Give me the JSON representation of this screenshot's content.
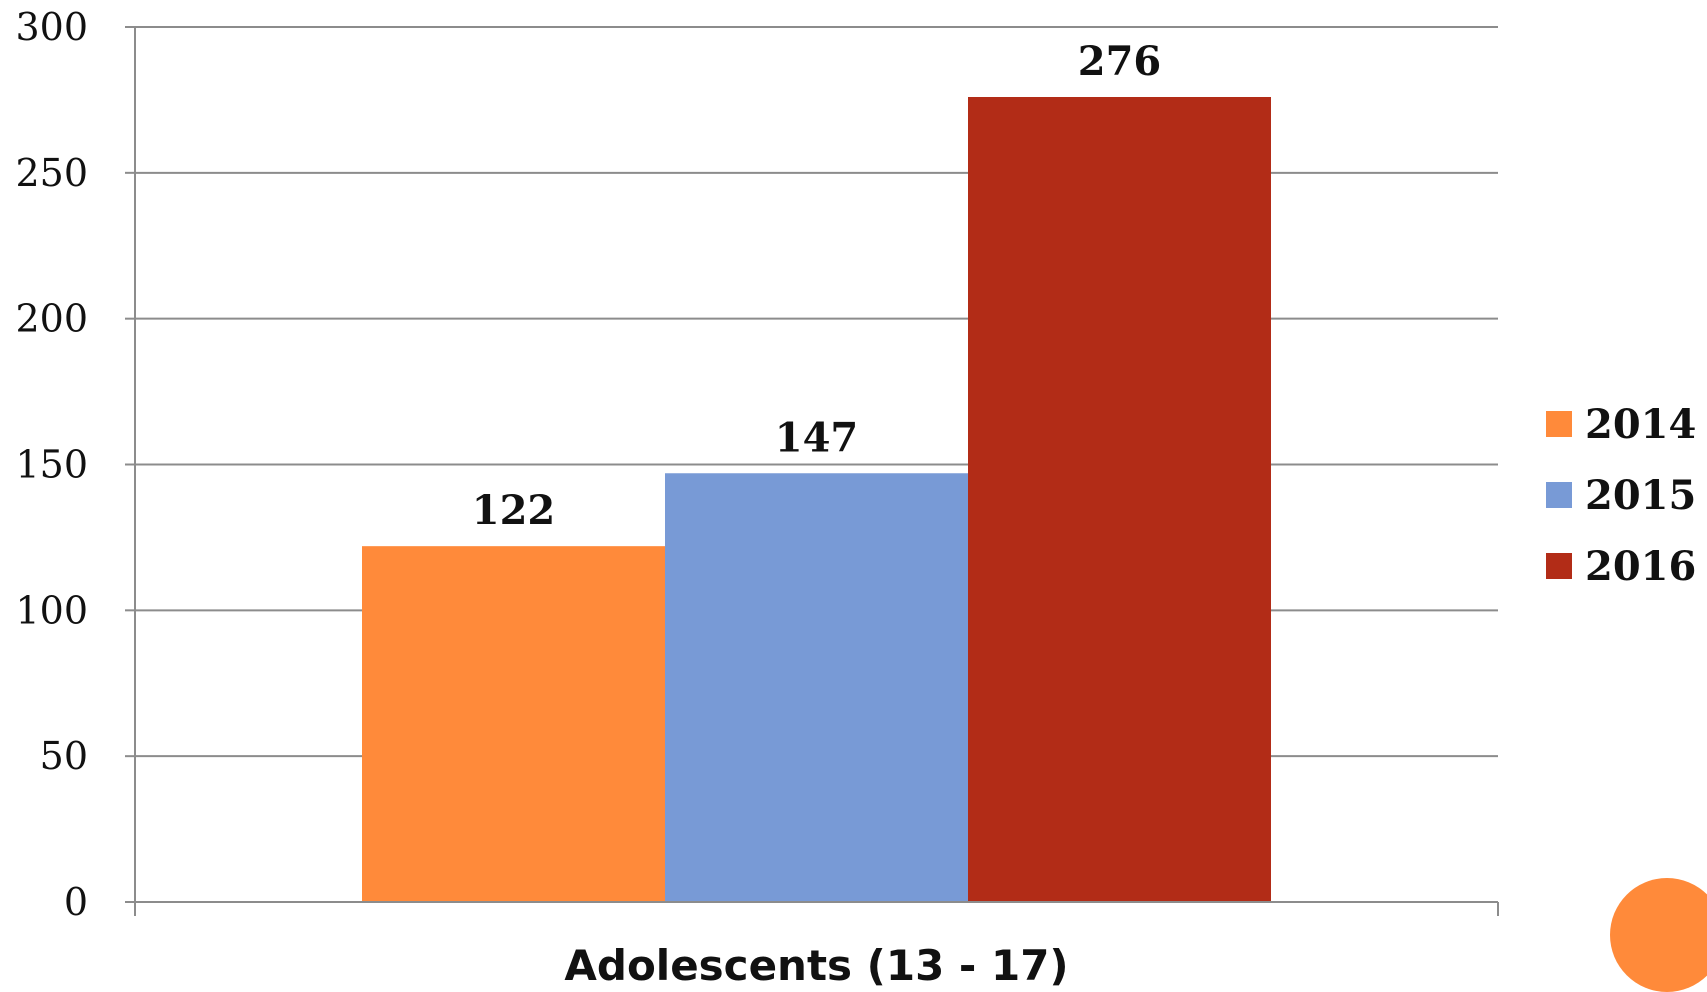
{
  "chart_data": {
    "type": "bar",
    "categories": [
      "Adolescents (13 - 17)"
    ],
    "series": [
      {
        "name": "2014",
        "values": [
          122
        ],
        "color": "#FF8A3A"
      },
      {
        "name": "2015",
        "values": [
          147
        ],
        "color": "#789AD6"
      },
      {
        "name": "2016",
        "values": [
          276
        ],
        "color": "#B22C17"
      }
    ],
    "ylim": [
      0,
      300
    ],
    "yticks": [
      0,
      50,
      100,
      150,
      200,
      250,
      300
    ],
    "grid": true,
    "legend_position": "right",
    "data_labels": true
  },
  "decoration": {
    "corner_circle_color": "#FF8A3A"
  }
}
